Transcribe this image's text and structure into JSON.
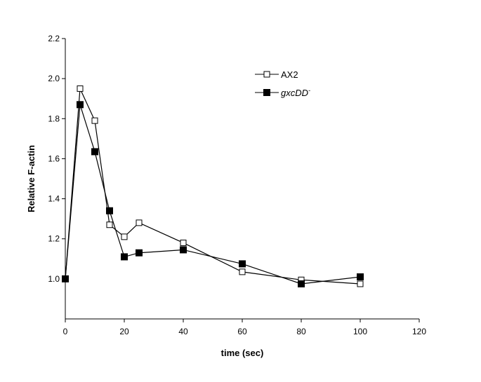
{
  "chart_data": {
    "type": "line",
    "title": "",
    "xlabel": "time (sec)",
    "ylabel": "Relative F-actin",
    "xlim": [
      0,
      120
    ],
    "ylim": [
      0.8,
      2.2
    ],
    "xticks": [
      0,
      20,
      40,
      60,
      80,
      100,
      120
    ],
    "yticks": [
      1.0,
      1.2,
      1.4,
      1.6,
      1.8,
      2.0,
      2.2
    ],
    "ytick_labels": [
      "1.0",
      "1.2",
      "1.4",
      "1.6",
      "1.8",
      "2.0",
      "2.2"
    ],
    "grid": false,
    "legend_position": "top-right",
    "series": [
      {
        "name": "AX2",
        "marker": "open-square",
        "x": [
          0,
          5,
          10,
          15,
          20,
          25,
          40,
          60,
          80,
          100
        ],
        "values": [
          1.0,
          1.95,
          1.79,
          1.27,
          1.21,
          1.28,
          1.18,
          1.035,
          0.995,
          0.975
        ]
      },
      {
        "name": "gxcDD",
        "superscript": "-",
        "marker": "filled-square",
        "x": [
          0,
          5,
          10,
          15,
          20,
          25,
          40,
          60,
          80,
          100
        ],
        "values": [
          1.0,
          1.87,
          1.635,
          1.34,
          1.11,
          1.13,
          1.145,
          1.075,
          0.975,
          1.01
        ]
      }
    ]
  }
}
